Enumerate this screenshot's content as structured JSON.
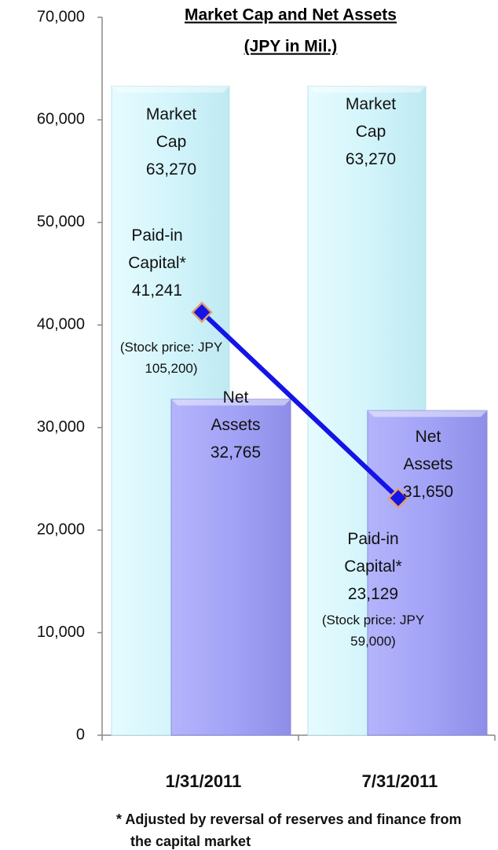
{
  "chart_data": {
    "type": "bar",
    "title": "Market Cap and Net Assets",
    "subtitle": "(JPY in Mil.)",
    "categories": [
      "1/31/2011",
      "7/31/2011"
    ],
    "series": [
      {
        "name": "Market Cap",
        "color": "#d3f5fb",
        "values": [
          63270,
          63270
        ],
        "value_labels": [
          "63,270",
          "63,270"
        ]
      },
      {
        "name": "Net Assets",
        "color": "#a3a3f7",
        "values": [
          32765,
          31650
        ],
        "value_labels": [
          "32,765",
          "31,650"
        ]
      },
      {
        "name": "Paid-in Capital*",
        "type": "line",
        "color": "#1414e6",
        "values": [
          41241,
          23129
        ],
        "value_labels": [
          "41,241",
          "23,129"
        ]
      }
    ],
    "annotations": [
      "(Stock price: JPY 105,200)",
      "(Stock price: JPY 59,000)"
    ],
    "footnote": "* Adjusted by reversal of reserves and finance from the capital market",
    "ylim": [
      0,
      70000
    ],
    "yticks": [
      0,
      {
        "value": 10000,
        "label": "10,000"
      },
      {
        "value": 20000,
        "label": "20,000"
      },
      {
        "value": 30000,
        "label": "30,000"
      },
      {
        "value": 40000,
        "label": "40,000"
      },
      {
        "value": 50000,
        "label": "50,000"
      },
      {
        "value": 60000,
        "label": "60,000"
      },
      {
        "value": 70000,
        "label": "70,000"
      }
    ],
    "grid": false
  }
}
